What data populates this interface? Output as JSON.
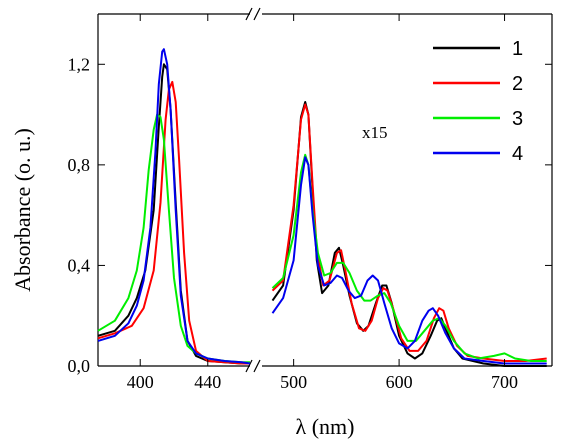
{
  "chart_data": {
    "type": "line",
    "ylabel": "Absorbance (o. u.)",
    "xlabel": "λ (nm)",
    "annotation": "x15",
    "ylim": [
      0,
      1.4
    ],
    "y_ticks": [
      0.0,
      0.4,
      0.8,
      1.2
    ],
    "y_tick_labels": [
      "0,0",
      "0,4",
      "0,8",
      "1,2"
    ],
    "legend_position": "top-right",
    "grid": false,
    "axis_break": true,
    "segments": [
      {
        "xlim": [
          375,
          465
        ],
        "x_ticks": [
          400,
          440
        ],
        "x_tick_labels": [
          "400",
          "440"
        ]
      },
      {
        "xlim": [
          470,
          745
        ],
        "x_ticks": [
          500,
          600,
          700
        ],
        "x_tick_labels": [
          "500",
          "600",
          "700"
        ]
      }
    ],
    "series": [
      {
        "name": "1",
        "color": "#000000",
        "segments": [
          [
            [
              375,
              0.12
            ],
            [
              385,
              0.14
            ],
            [
              393,
              0.2
            ],
            [
              398,
              0.27
            ],
            [
              403,
              0.38
            ],
            [
              408,
              0.62
            ],
            [
              411,
              0.95
            ],
            [
              413,
              1.15
            ],
            [
              414,
              1.2
            ],
            [
              416,
              1.18
            ],
            [
              418,
              1.02
            ],
            [
              421,
              0.65
            ],
            [
              424,
              0.3
            ],
            [
              428,
              0.1
            ],
            [
              433,
              0.04
            ],
            [
              440,
              0.02
            ],
            [
              450,
              0.015
            ],
            [
              460,
              0.01
            ],
            [
              465,
              0.01
            ]
          ],
          [
            [
              480,
              0.26
            ],
            [
              490,
              0.32
            ],
            [
              500,
              0.62
            ],
            [
              507,
              0.99
            ],
            [
              511,
              1.05
            ],
            [
              514,
              1.0
            ],
            [
              518,
              0.7
            ],
            [
              522,
              0.42
            ],
            [
              527,
              0.29
            ],
            [
              533,
              0.32
            ],
            [
              539,
              0.45
            ],
            [
              543,
              0.47
            ],
            [
              547,
              0.4
            ],
            [
              553,
              0.28
            ],
            [
              560,
              0.17
            ],
            [
              566,
              0.14
            ],
            [
              571,
              0.16
            ],
            [
              578,
              0.25
            ],
            [
              584,
              0.32
            ],
            [
              588,
              0.32
            ],
            [
              593,
              0.25
            ],
            [
              600,
              0.12
            ],
            [
              608,
              0.05
            ],
            [
              615,
              0.03
            ],
            [
              622,
              0.05
            ],
            [
              630,
              0.12
            ],
            [
              636,
              0.18
            ],
            [
              640,
              0.19
            ],
            [
              645,
              0.14
            ],
            [
              652,
              0.07
            ],
            [
              660,
              0.03
            ],
            [
              680,
              0.01
            ],
            [
              700,
              0.0
            ],
            [
              720,
              0.0
            ],
            [
              740,
              0.0
            ]
          ]
        ]
      },
      {
        "name": "2",
        "color": "#ff0000",
        "segments": [
          [
            [
              375,
              0.11
            ],
            [
              385,
              0.13
            ],
            [
              395,
              0.16
            ],
            [
              402,
              0.23
            ],
            [
              408,
              0.38
            ],
            [
              412,
              0.65
            ],
            [
              415,
              0.98
            ],
            [
              417,
              1.1
            ],
            [
              419,
              1.13
            ],
            [
              421,
              1.05
            ],
            [
              423,
              0.82
            ],
            [
              426,
              0.45
            ],
            [
              429,
              0.18
            ],
            [
              433,
              0.06
            ],
            [
              440,
              0.02
            ],
            [
              450,
              0.015
            ],
            [
              460,
              0.01
            ],
            [
              465,
              0.01
            ]
          ],
          [
            [
              480,
              0.3
            ],
            [
              490,
              0.34
            ],
            [
              500,
              0.64
            ],
            [
              507,
              0.98
            ],
            [
              511,
              1.04
            ],
            [
              514,
              1.0
            ],
            [
              518,
              0.72
            ],
            [
              522,
              0.46
            ],
            [
              528,
              0.32
            ],
            [
              534,
              0.34
            ],
            [
              541,
              0.45
            ],
            [
              545,
              0.46
            ],
            [
              549,
              0.38
            ],
            [
              555,
              0.25
            ],
            [
              562,
              0.15
            ],
            [
              568,
              0.14
            ],
            [
              574,
              0.18
            ],
            [
              580,
              0.27
            ],
            [
              585,
              0.31
            ],
            [
              589,
              0.3
            ],
            [
              595,
              0.22
            ],
            [
              602,
              0.11
            ],
            [
              610,
              0.06
            ],
            [
              618,
              0.06
            ],
            [
              626,
              0.1
            ],
            [
              633,
              0.19
            ],
            [
              638,
              0.23
            ],
            [
              642,
              0.22
            ],
            [
              647,
              0.15
            ],
            [
              655,
              0.08
            ],
            [
              665,
              0.04
            ],
            [
              680,
              0.03
            ],
            [
              700,
              0.02
            ],
            [
              720,
              0.02
            ],
            [
              740,
              0.03
            ]
          ]
        ]
      },
      {
        "name": "3",
        "color": "#00ee00",
        "segments": [
          [
            [
              375,
              0.14
            ],
            [
              385,
              0.18
            ],
            [
              393,
              0.27
            ],
            [
              398,
              0.38
            ],
            [
              402,
              0.55
            ],
            [
              405,
              0.78
            ],
            [
              408,
              0.94
            ],
            [
              410,
              1.0
            ],
            [
              412,
              0.99
            ],
            [
              414,
              0.9
            ],
            [
              417,
              0.62
            ],
            [
              420,
              0.35
            ],
            [
              424,
              0.16
            ],
            [
              428,
              0.08
            ],
            [
              433,
              0.05
            ],
            [
              440,
              0.03
            ],
            [
              450,
              0.02
            ],
            [
              460,
              0.015
            ],
            [
              465,
              0.015
            ]
          ],
          [
            [
              480,
              0.31
            ],
            [
              490,
              0.35
            ],
            [
              500,
              0.52
            ],
            [
              507,
              0.77
            ],
            [
              511,
              0.84
            ],
            [
              514,
              0.8
            ],
            [
              518,
              0.62
            ],
            [
              523,
              0.45
            ],
            [
              529,
              0.36
            ],
            [
              535,
              0.37
            ],
            [
              541,
              0.41
            ],
            [
              547,
              0.41
            ],
            [
              553,
              0.37
            ],
            [
              560,
              0.3
            ],
            [
              567,
              0.26
            ],
            [
              573,
              0.26
            ],
            [
              580,
              0.28
            ],
            [
              586,
              0.29
            ],
            [
              592,
              0.25
            ],
            [
              600,
              0.16
            ],
            [
              608,
              0.1
            ],
            [
              616,
              0.1
            ],
            [
              624,
              0.14
            ],
            [
              632,
              0.18
            ],
            [
              638,
              0.19
            ],
            [
              644,
              0.16
            ],
            [
              652,
              0.1
            ],
            [
              662,
              0.05
            ],
            [
              675,
              0.03
            ],
            [
              690,
              0.04
            ],
            [
              700,
              0.05
            ],
            [
              710,
              0.03
            ],
            [
              725,
              0.02
            ],
            [
              740,
              0.02
            ]
          ]
        ]
      },
      {
        "name": "4",
        "color": "#0000ee",
        "segments": [
          [
            [
              375,
              0.1
            ],
            [
              385,
              0.12
            ],
            [
              393,
              0.17
            ],
            [
              398,
              0.24
            ],
            [
              402,
              0.34
            ],
            [
              406,
              0.55
            ],
            [
              409,
              0.85
            ],
            [
              411,
              1.12
            ],
            [
              413,
              1.25
            ],
            [
              414,
              1.26
            ],
            [
              416,
              1.2
            ],
            [
              418,
              1.02
            ],
            [
              421,
              0.62
            ],
            [
              424,
              0.28
            ],
            [
              428,
              0.1
            ],
            [
              433,
              0.05
            ],
            [
              440,
              0.03
            ],
            [
              450,
              0.02
            ],
            [
              460,
              0.015
            ],
            [
              465,
              0.01
            ]
          ],
          [
            [
              480,
              0.21
            ],
            [
              490,
              0.27
            ],
            [
              500,
              0.42
            ],
            [
              507,
              0.72
            ],
            [
              511,
              0.83
            ],
            [
              514,
              0.8
            ],
            [
              518,
              0.6
            ],
            [
              523,
              0.4
            ],
            [
              529,
              0.32
            ],
            [
              535,
              0.33
            ],
            [
              541,
              0.36
            ],
            [
              546,
              0.35
            ],
            [
              552,
              0.3
            ],
            [
              558,
              0.27
            ],
            [
              564,
              0.28
            ],
            [
              570,
              0.34
            ],
            [
              575,
              0.36
            ],
            [
              580,
              0.34
            ],
            [
              586,
              0.25
            ],
            [
              593,
              0.15
            ],
            [
              600,
              0.09
            ],
            [
              608,
              0.07
            ],
            [
              615,
              0.1
            ],
            [
              622,
              0.18
            ],
            [
              628,
              0.22
            ],
            [
              632,
              0.23
            ],
            [
              637,
              0.2
            ],
            [
              644,
              0.13
            ],
            [
              652,
              0.07
            ],
            [
              662,
              0.03
            ],
            [
              680,
              0.02
            ],
            [
              700,
              0.01
            ],
            [
              720,
              0.01
            ],
            [
              740,
              0.01
            ]
          ]
        ]
      }
    ]
  }
}
